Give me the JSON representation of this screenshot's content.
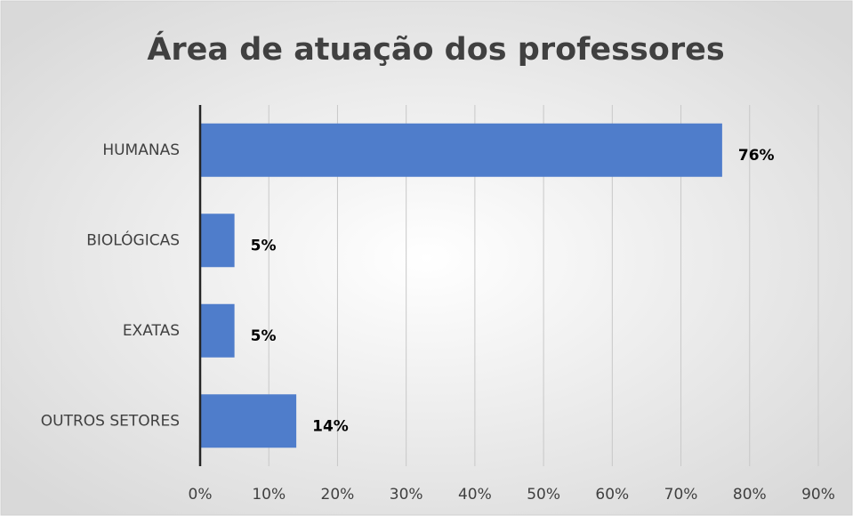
{
  "chart_data": {
    "type": "bar",
    "orientation": "horizontal",
    "title": "Área de atuação dos professores",
    "categories": [
      "HUMANAS",
      "BIOLÓGICAS",
      "EXATAS",
      "OUTROS SETORES"
    ],
    "values": [
      76,
      5,
      5,
      14
    ],
    "value_labels": [
      "76%",
      "5%",
      "5%",
      "14%"
    ],
    "color": "#4f7dcb",
    "xlim": [
      0,
      90
    ],
    "xticks": [
      {
        "value": 0,
        "label": "0%"
      },
      {
        "value": 10,
        "label": "10%"
      },
      {
        "value": 20,
        "label": "20%"
      },
      {
        "value": 30,
        "label": "30%"
      },
      {
        "value": 40,
        "label": "40%"
      },
      {
        "value": 50,
        "label": "50%"
      },
      {
        "value": 60,
        "label": "60%"
      },
      {
        "value": 70,
        "label": "70%"
      },
      {
        "value": 80,
        "label": "80%"
      },
      {
        "value": 90,
        "label": "90%"
      }
    ],
    "grid": true
  }
}
